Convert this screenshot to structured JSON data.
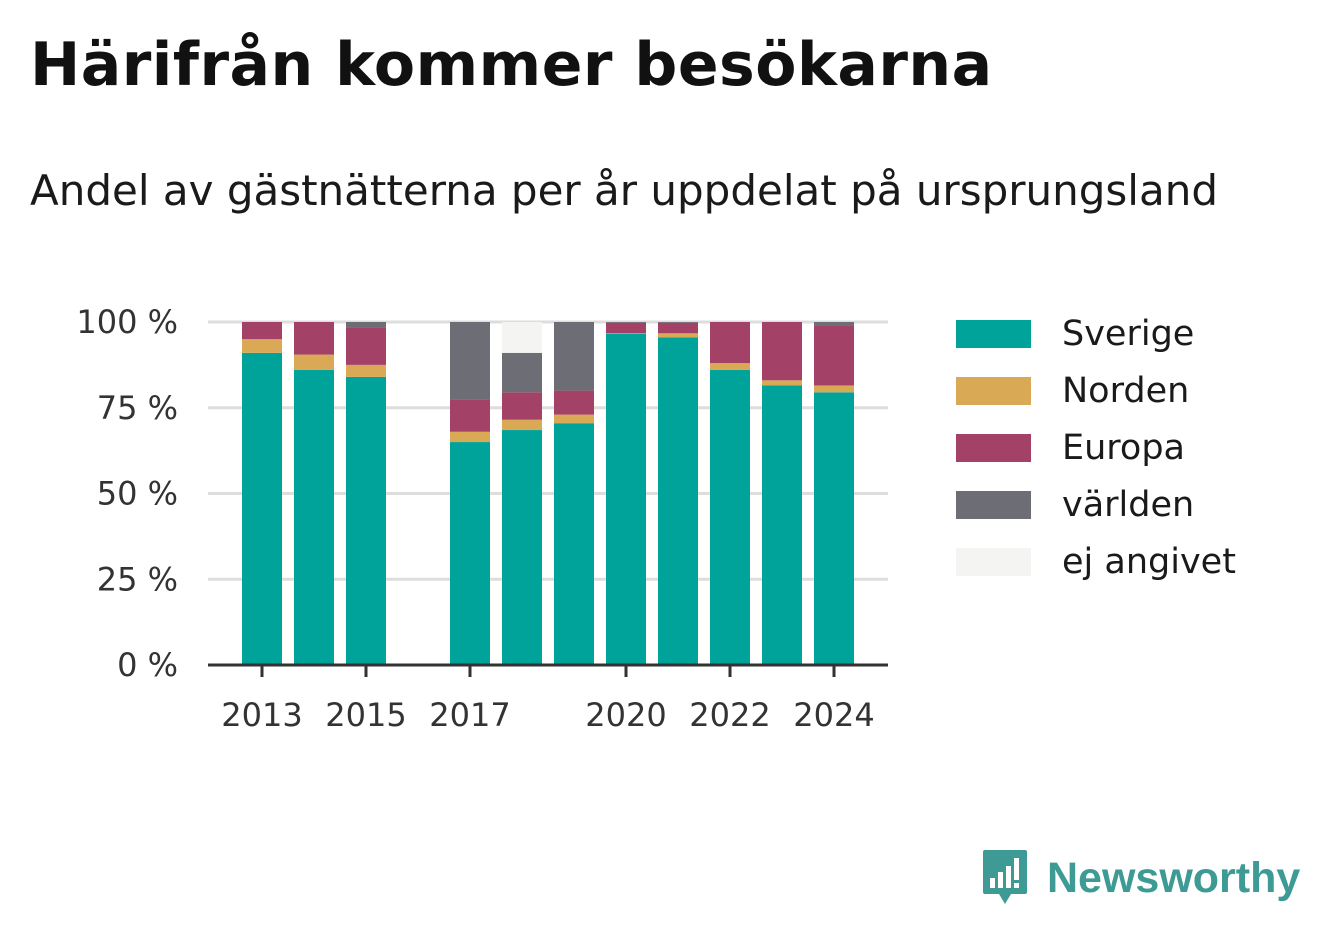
{
  "title": "Härifrån kommer besökarna",
  "subtitle": "Andel av gästnätterna per år uppdelat på ursprungsland",
  "brand": {
    "name": "Newsworthy",
    "icon": "newsworthy-logo-icon",
    "color": "#3e9a94"
  },
  "chart_data": {
    "type": "bar",
    "stacked": true,
    "categories": [
      "2013",
      "2014",
      "2015",
      "2016",
      "2017",
      "2018",
      "2019",
      "2020",
      "2021",
      "2022",
      "2023",
      "2024"
    ],
    "x_tick_labels": [
      "2013",
      "2015",
      "2017",
      "2020",
      "2022",
      "2024"
    ],
    "y_tick_labels": [
      "0 %",
      "25 %",
      "50 %",
      "75 %",
      "100 %"
    ],
    "y_ticks": [
      0,
      25,
      50,
      75,
      100
    ],
    "ylim": [
      0,
      100
    ],
    "grid": true,
    "legend_position": "right",
    "series": [
      {
        "name": "Sverige",
        "color": "#00a39a",
        "values": [
          91,
          86,
          84,
          null,
          65,
          68.5,
          70.5,
          96.5,
          95.5,
          86,
          81.5,
          79.5
        ]
      },
      {
        "name": "Norden",
        "color": "#d9a955",
        "values": [
          4,
          4.5,
          3.5,
          null,
          3,
          3,
          2.5,
          0.2,
          1.2,
          2,
          1.5,
          2
        ]
      },
      {
        "name": "Europa",
        "color": "#a34166",
        "values": [
          5,
          9.5,
          11,
          null,
          9.5,
          8,
          7,
          3.1,
          3.1,
          12,
          17,
          17.5
        ]
      },
      {
        "name": "världen",
        "color": "#6d6d75",
        "values": [
          0,
          0,
          1.5,
          null,
          22.5,
          11.5,
          20,
          0.2,
          0.2,
          0,
          0,
          1
        ]
      },
      {
        "name": "ej angivet",
        "color": "#f4f4f2",
        "values": [
          0,
          0,
          0,
          null,
          0,
          9,
          0,
          0,
          0,
          0,
          0,
          0
        ]
      }
    ]
  }
}
